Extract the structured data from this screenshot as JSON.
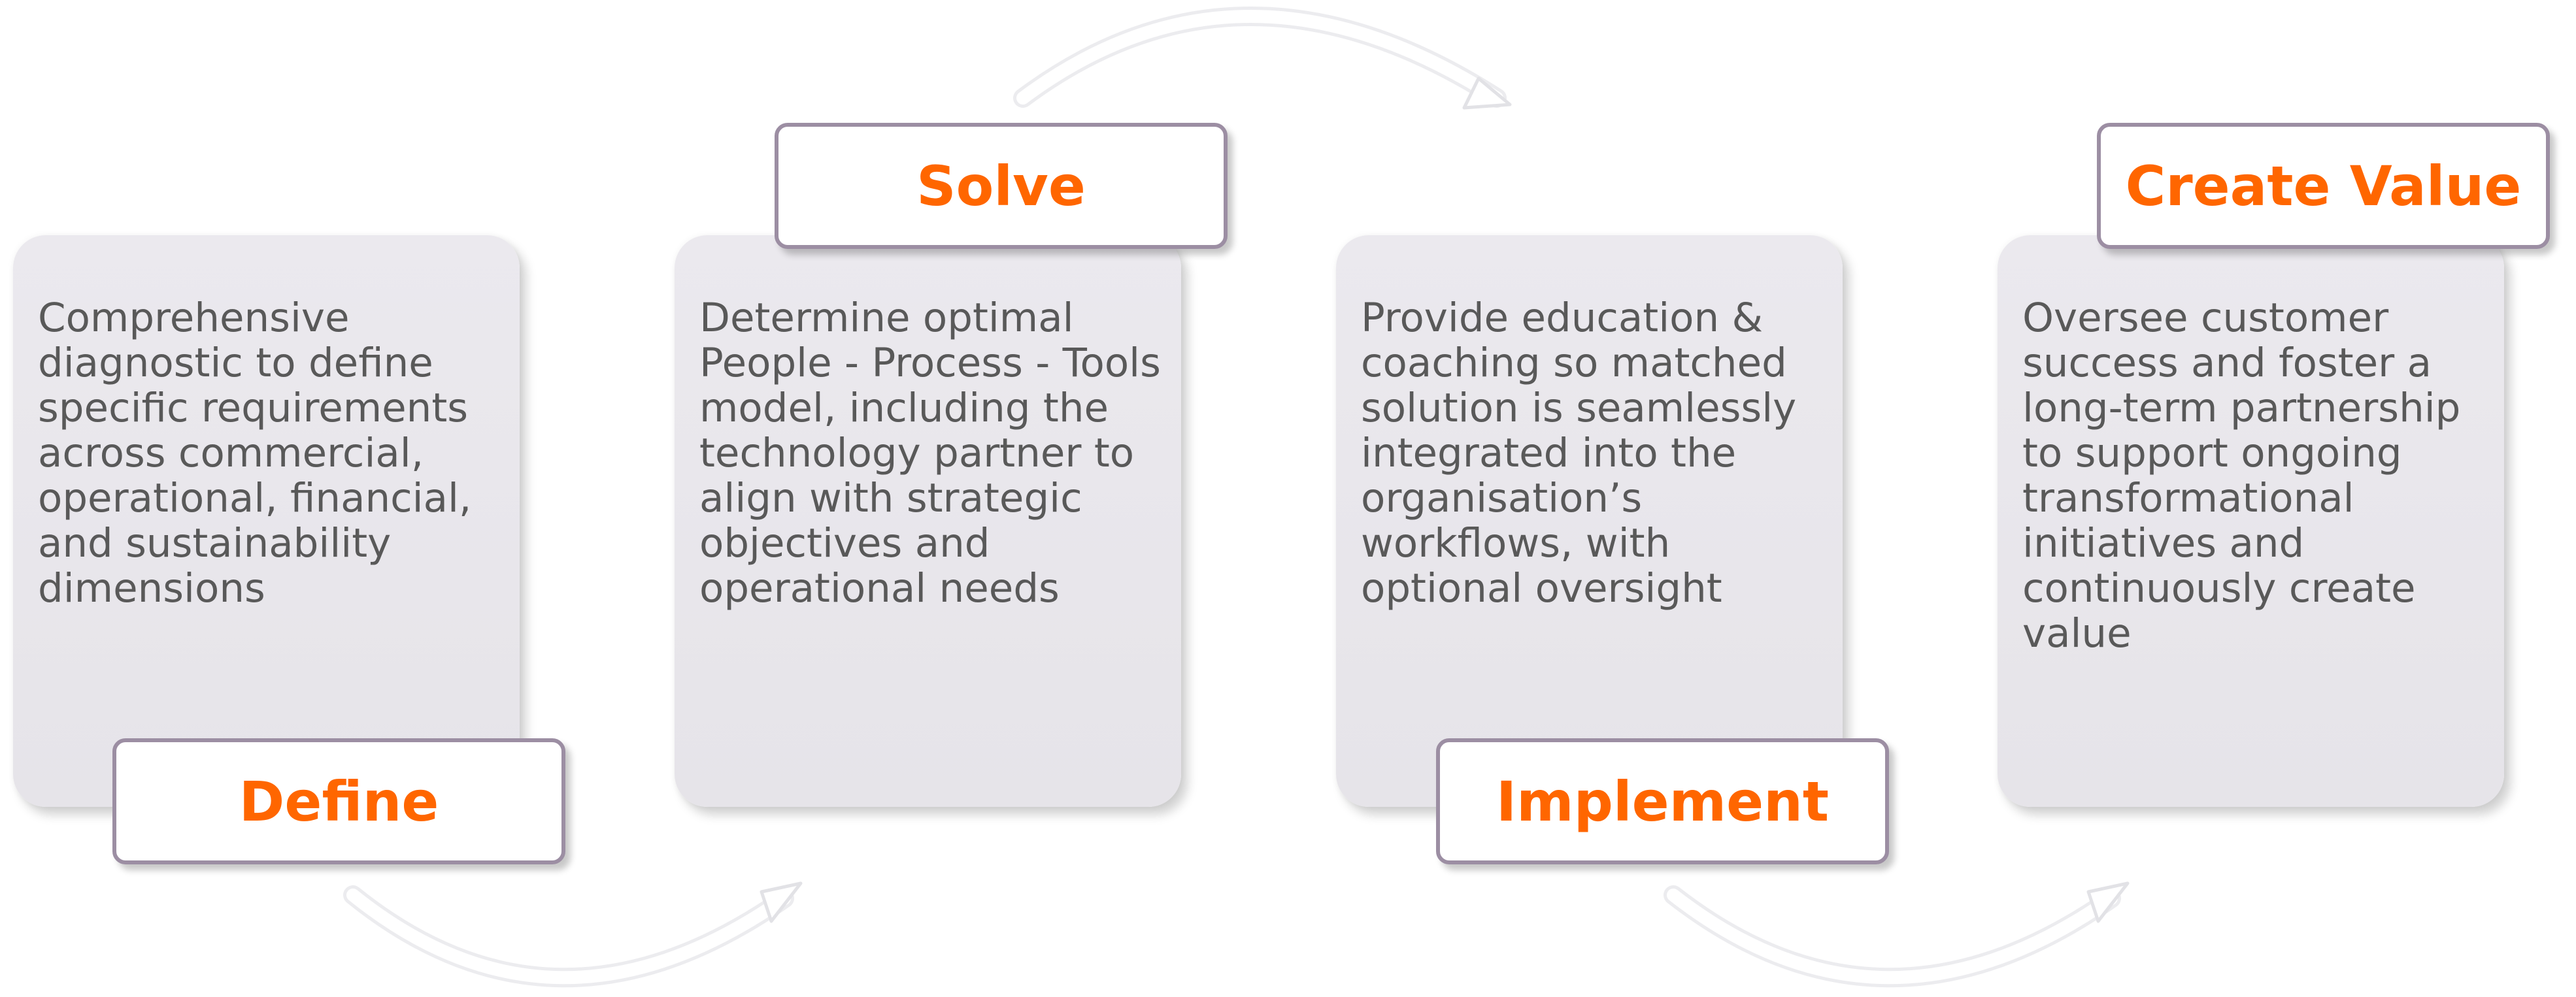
{
  "colors": {
    "accent": "#ff6600",
    "card_bg": "#e9e7ec",
    "label_border": "#9c8ea3",
    "body_text": "#595959"
  },
  "steps": [
    {
      "label": "Define",
      "description": "Comprehensive diagnostic to define specific requirements across commercial, operational, financial, and sustainability dimensions"
    },
    {
      "label": "Solve",
      "description": "Determine optimal People - Process - Tools model, including the technology partner to align with strategic objectives and operational needs"
    },
    {
      "label": "Implement",
      "description": "Provide education & coaching so matched solution is seamlessly integrated into the organisation’s workflows, with optional oversight"
    },
    {
      "label": "Create Value",
      "description": "Oversee customer success and foster a long-term partnership to support ongoing transformational initiatives and continuously create value"
    }
  ]
}
